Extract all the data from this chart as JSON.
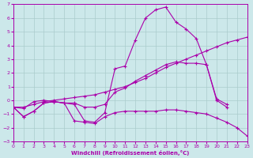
{
  "xlabel": "Windchill (Refroidissement éolien,°C)",
  "bg_color": "#cce8ea",
  "grid_color": "#aacccc",
  "line_color": "#aa00aa",
  "xlim": [
    0,
    23
  ],
  "ylim": [
    -3,
    7
  ],
  "xticks": [
    0,
    1,
    2,
    3,
    4,
    5,
    6,
    7,
    8,
    9,
    10,
    11,
    12,
    13,
    14,
    15,
    16,
    17,
    18,
    19,
    20,
    21,
    22,
    23
  ],
  "yticks": [
    -3,
    -2,
    -1,
    0,
    1,
    2,
    3,
    4,
    5,
    6,
    7
  ],
  "line1_x": [
    0,
    1,
    2,
    3,
    4,
    5,
    6,
    7,
    8,
    9,
    10,
    11,
    12,
    13,
    14,
    15,
    16,
    17,
    18,
    19,
    20,
    21
  ],
  "line1_y": [
    -0.5,
    -1.2,
    -0.8,
    -0.2,
    -0.1,
    -0.2,
    -0.3,
    -1.5,
    -1.6,
    -0.9,
    2.3,
    2.5,
    4.4,
    6.0,
    6.6,
    6.8,
    5.7,
    5.2,
    4.5,
    2.6,
    0.1,
    -0.3
  ],
  "line2_x": [
    0,
    1,
    2,
    3,
    4,
    5,
    6,
    7,
    8,
    9,
    10,
    11,
    12,
    13,
    14,
    15,
    16,
    17,
    18,
    19,
    20,
    21,
    22,
    23
  ],
  "line2_y": [
    -0.5,
    -0.5,
    -0.3,
    -0.1,
    0.0,
    0.1,
    0.2,
    0.3,
    0.4,
    0.6,
    0.8,
    1.0,
    1.3,
    1.6,
    2.0,
    2.4,
    2.7,
    3.0,
    3.3,
    3.6,
    3.9,
    4.2,
    4.4,
    4.6
  ],
  "line3_x": [
    0,
    1,
    2,
    3,
    4,
    5,
    6,
    7,
    8,
    9,
    10,
    11,
    12,
    13,
    14,
    15,
    16,
    17,
    18,
    19,
    20,
    21
  ],
  "line3_y": [
    -0.5,
    -0.6,
    -0.1,
    0.0,
    -0.1,
    -0.2,
    -0.2,
    -0.5,
    -0.5,
    -0.3,
    0.6,
    0.9,
    1.4,
    1.8,
    2.2,
    2.6,
    2.8,
    2.7,
    2.7,
    2.6,
    0.0,
    -0.5
  ],
  "line4_x": [
    0,
    1,
    2,
    3,
    4,
    5,
    6,
    7,
    8,
    9,
    10,
    11,
    12,
    13,
    14,
    15,
    16,
    17,
    18,
    19,
    20,
    21,
    22,
    23
  ],
  "line4_y": [
    -0.5,
    -1.2,
    -0.8,
    -0.2,
    -0.1,
    -0.2,
    -1.5,
    -1.6,
    -1.7,
    -1.2,
    -0.9,
    -0.8,
    -0.8,
    -0.8,
    -0.8,
    -0.7,
    -0.7,
    -0.8,
    -0.9,
    -1.0,
    -1.3,
    -1.6,
    -2.0,
    -2.6
  ]
}
